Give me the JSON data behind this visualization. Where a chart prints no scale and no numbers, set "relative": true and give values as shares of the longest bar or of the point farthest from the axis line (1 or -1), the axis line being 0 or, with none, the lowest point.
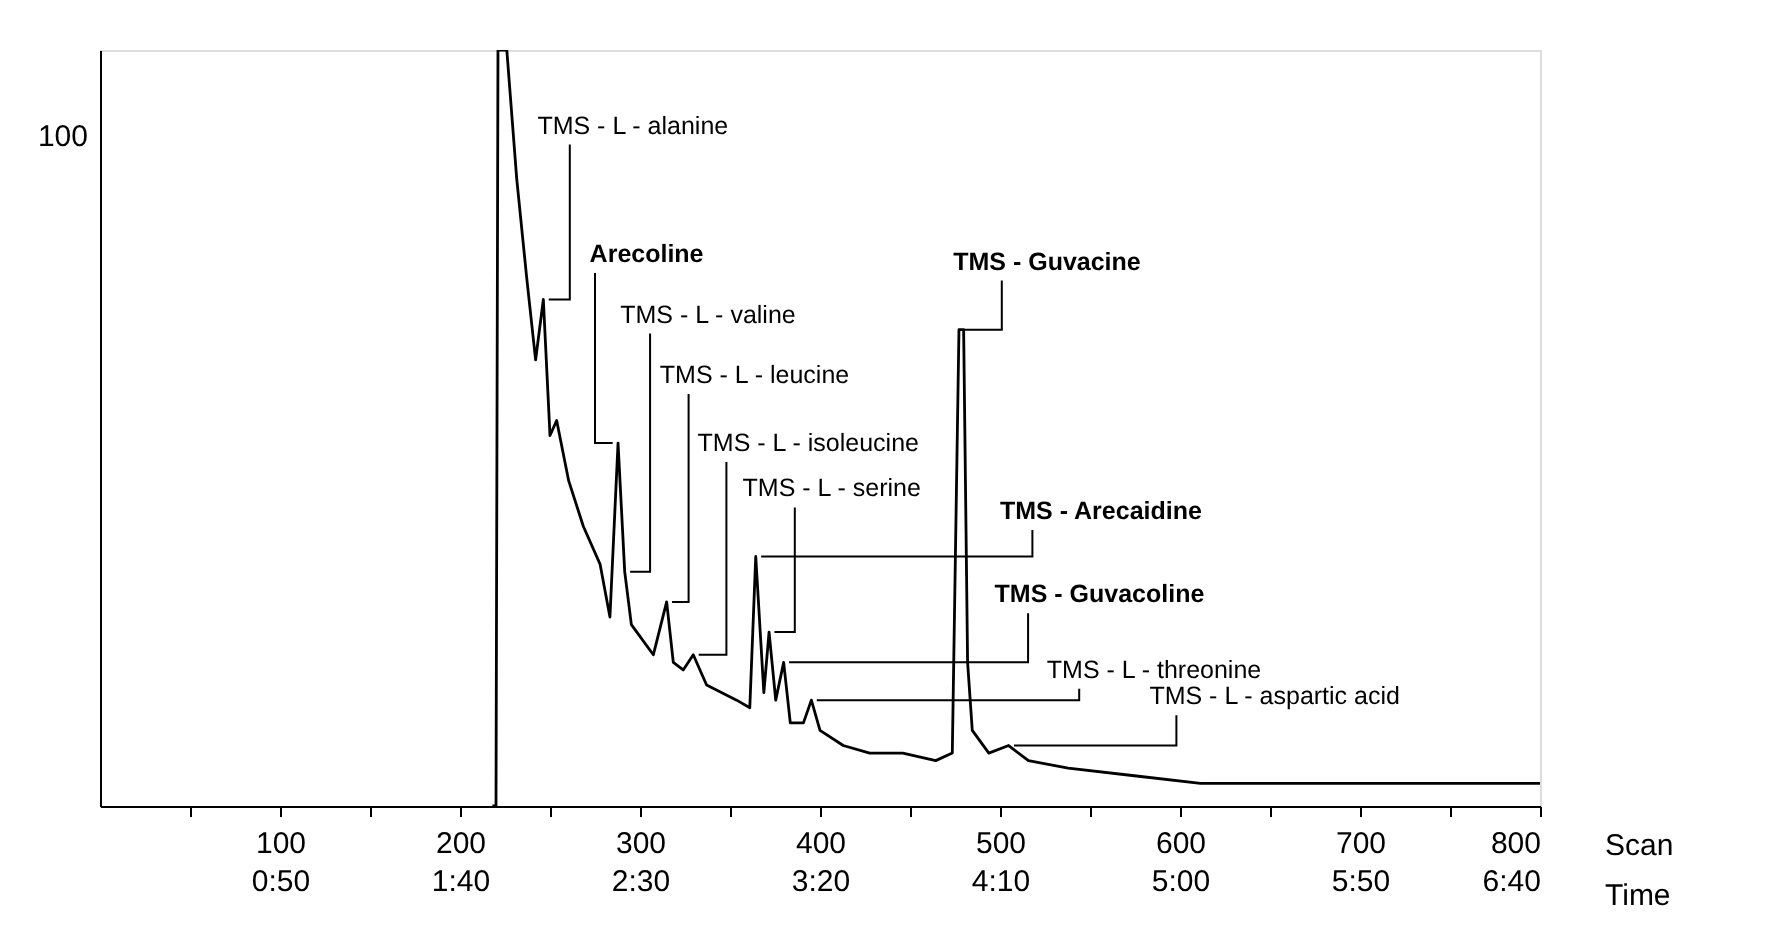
{
  "chart_data": {
    "type": "line",
    "relative": true,
    "color": "#000000",
    "marker": "none",
    "line_style": "solid",
    "grid": false,
    "xlabel": "Scan",
    "x2label": "Time",
    "xlim": [
      0,
      800
    ],
    "xticks": [
      {
        "value": 50,
        "label": null
      },
      100,
      {
        "value": 150,
        "label": null
      },
      200,
      {
        "value": 250,
        "label": null
      },
      300,
      {
        "value": 350,
        "label": null
      },
      400,
      {
        "value": 450,
        "label": null
      },
      500,
      {
        "value": 550,
        "label": null
      },
      600,
      {
        "value": 650,
        "label": null
      },
      700,
      {
        "value": 750,
        "label": null
      },
      800
    ],
    "x2lim": [
      0,
      400
    ],
    "x2ticks": [
      {
        "value": 50,
        "label": "0:50"
      },
      {
        "value": 100,
        "label": "1:40"
      },
      {
        "value": 150,
        "label": "2:30"
      },
      {
        "value": 200,
        "label": "3:20"
      },
      {
        "value": 250,
        "label": "4:10"
      },
      {
        "value": 300,
        "label": "5:00"
      },
      {
        "value": 350,
        "label": "5:50"
      },
      {
        "value": 400,
        "label": "6:40"
      }
    ],
    "x": [
      218,
      220,
      221.1,
      226,
      231.5,
      237,
      242,
      246.3,
      250,
      253.7,
      260.4,
      268.5,
      277.8,
      283.3,
      287.8,
      291.5,
      295.2,
      307.4,
      314.8,
      318.5,
      324,
      329.6,
      337,
      353.7,
      361,
      364.3,
      368.8,
      371.7,
      375.4,
      379.8,
      383.5,
      390.8,
      395.2,
      400,
      412.9,
      427.6,
      446,
      464.3,
      473.5,
      477.2,
      479.8,
      482,
      484.6,
      493.8,
      504.8,
      515.8,
      537.9,
      574.6,
      611.4,
      700,
      800
    ],
    "values": [
      0,
      0,
      1,
      1,
      0.83,
      0.7,
      0.59,
      0.67,
      0.49,
      0.51,
      0.43,
      0.37,
      0.32,
      0.25,
      0.48,
      0.31,
      0.24,
      0.2,
      0.27,
      0.19,
      0.18,
      0.2,
      0.16,
      0.14,
      0.13,
      0.33,
      0.15,
      0.23,
      0.14,
      0.19,
      0.11,
      0.11,
      0.14,
      0.1,
      0.08,
      0.07,
      0.07,
      0.06,
      0.07,
      0.63,
      0.63,
      0.19,
      0.1,
      0.07,
      0.08,
      0.06,
      0.05,
      0.04,
      0.03,
      0.03,
      0.03
    ],
    "annotations": [
      "100",
      {
        "text": "TMS - L - alanine",
        "x": 246.3,
        "y": 0.67
      },
      {
        "text": "Arecoline",
        "x": 287.8,
        "y": 0.48
      },
      {
        "text": "TMS - L - valine",
        "x": 291.5,
        "y": 0.31
      },
      {
        "text": "TMS - L - leucine",
        "x": 314.8,
        "y": 0.27
      },
      {
        "text": "TMS - L - isoleucine",
        "x": 329.6,
        "y": 0.2
      },
      {
        "text": "TMS - L - serine",
        "x": 371.7,
        "y": 0.23
      },
      {
        "text": "TMS - Arecaidine",
        "x": 364.3,
        "y": 0.33
      },
      {
        "text": "TMS - Guvacine",
        "x": 477.2,
        "y": 0.63
      },
      {
        "text": "TMS - Guvacoline",
        "x": 379.8,
        "y": 0.19
      },
      {
        "text": "TMS - L - threonine",
        "x": 395.2,
        "y": 0.14
      },
      {
        "text": "TMS - L - aspartic acid",
        "x": 504.8,
        "y": 0.08
      }
    ]
  }
}
